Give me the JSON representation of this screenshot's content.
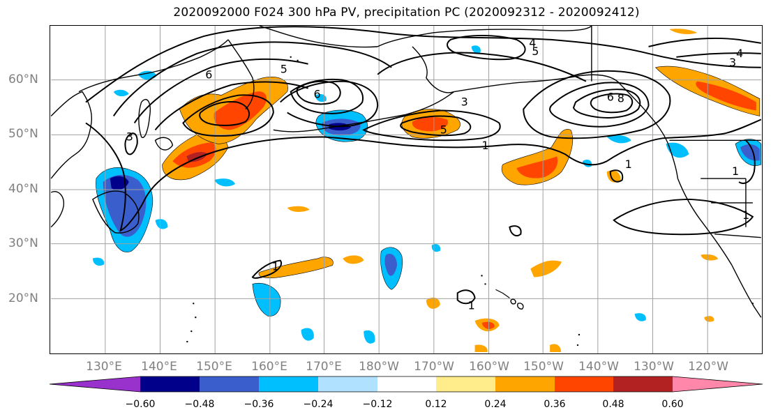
{
  "title": "2020092000 F024 300 hPa PV, precipitation PC (2020092312 - 2020092412)",
  "lat_labels": [
    "60°N",
    "50°N",
    "40°N",
    "30°N",
    "20°N"
  ],
  "lon_labels": [
    "130°E",
    "140°E",
    "150°E",
    "160°E",
    "170°E",
    "180°W",
    "170°W",
    "160°W",
    "150°W",
    "140°W",
    "130°W",
    "120°W"
  ],
  "contour_labels": [
    "1",
    "1",
    "1",
    "1",
    "1",
    "1",
    "3",
    "3",
    "3",
    "4",
    "4",
    "5",
    "5",
    "5",
    "6",
    "6",
    "6",
    "8"
  ],
  "colorbar": {
    "ticks": [
      "−0.60",
      "−0.48",
      "−0.36",
      "−0.24",
      "−0.12",
      "0.12",
      "0.24",
      "0.36",
      "0.48",
      "0.60"
    ],
    "colors": [
      "#9932cc",
      "#00008b",
      "#3a5fcd",
      "#00bfff",
      "#b0e2ff",
      "#ffffff",
      "#ffec8b",
      "#ffa500",
      "#ff4500",
      "#b22222",
      "#ff88aa"
    ]
  },
  "palette": {
    "land_outline": "#000000",
    "grid": "#a0a0a0",
    "contour": "#000000",
    "axis_label": "#808080"
  }
}
